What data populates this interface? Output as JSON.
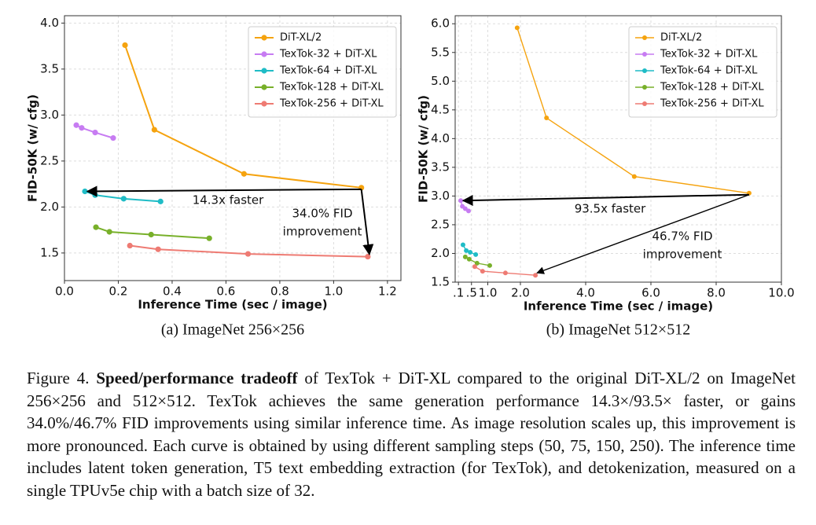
{
  "chart_data": [
    {
      "type": "line",
      "subtitle": "(a) ImageNet 256×256",
      "x_label": "Inference Time (sec / image)",
      "y_label": "FID-50K (w/ cfg)",
      "xlim": [
        0,
        1.25
      ],
      "ylim": [
        1.2,
        4.08
      ],
      "xticks": [
        {
          "value": 0,
          "label": "0.0"
        },
        0.2,
        0.4,
        0.6,
        0.8,
        {
          "value": 1,
          "label": "1.0"
        },
        1.2
      ],
      "yticks": [
        1.5,
        {
          "value": 2,
          "label": "2.0"
        },
        2.5,
        {
          "value": 3,
          "label": "3.0"
        },
        3.5,
        {
          "value": 4,
          "label": "4.0"
        }
      ],
      "grid": true,
      "legend": "upper right",
      "series": [
        {
          "name": "DiT-XL/2",
          "color": "#f5a30f",
          "x": [
            0.225,
            0.334,
            0.667,
            1.103
          ],
          "values": [
            3.76,
            2.84,
            2.36,
            2.21
          ]
        },
        {
          "name": "TexTok-32 + DiT-XL",
          "color": "#c77cf2",
          "x": [
            0.044,
            0.064,
            0.114,
            0.181
          ],
          "values": [
            2.89,
            2.86,
            2.81,
            2.75
          ]
        },
        {
          "name": "TexTok-64 + DiT-XL",
          "color": "#1fbcc6",
          "x": [
            0.076,
            0.114,
            0.22,
            0.357
          ],
          "values": [
            2.17,
            2.13,
            2.09,
            2.06
          ]
        },
        {
          "name": "TexTok-128 + DiT-XL",
          "color": "#78b02a",
          "x": [
            0.117,
            0.167,
            0.322,
            0.538
          ],
          "values": [
            1.78,
            1.73,
            1.7,
            1.66
          ]
        },
        {
          "name": "TexTok-256 + DiT-XL",
          "color": "#ee7b73",
          "x": [
            0.243,
            0.348,
            0.682,
            1.127
          ],
          "values": [
            1.58,
            1.54,
            1.49,
            1.46
          ]
        }
      ],
      "annotations": [
        {
          "text": [
            "14.3x faster"
          ]
        },
        {
          "text": [
            "34.0% FID",
            "improvement"
          ]
        }
      ]
    },
    {
      "type": "line",
      "subtitle": "(b) ImageNet 512×512",
      "x_label": "Inference Time (sec / image)",
      "y_label": "FID-50K (w/ cfg)",
      "xlim": [
        0,
        10
      ],
      "ylim": [
        1.5,
        6.14
      ],
      "xticks": [
        {
          "value": 0.1,
          "label": ".1"
        },
        {
          "value": 0.5,
          "label": ".5"
        },
        {
          "value": 1,
          "label": "1.0"
        },
        {
          "value": 2,
          "label": "2.0"
        },
        {
          "value": 4,
          "label": "4.0"
        },
        {
          "value": 6,
          "label": "6.0"
        },
        {
          "value": 8,
          "label": "8.0"
        },
        {
          "value": 10,
          "label": "10.0"
        }
      ],
      "yticks": [
        1.5,
        {
          "value": 2,
          "label": "2.0"
        },
        2.5,
        {
          "value": 3,
          "label": "3.0"
        },
        3.5,
        {
          "value": 4,
          "label": "4.0"
        },
        4.5,
        {
          "value": 5,
          "label": "5.0"
        },
        5.5,
        {
          "value": 6,
          "label": "6.0"
        }
      ],
      "grid": true,
      "legend": "upper right",
      "series": [
        {
          "name": "DiT-XL/2",
          "color": "#f5a30f",
          "x": [
            1.9,
            2.8,
            5.49,
            9.01
          ],
          "values": [
            5.93,
            4.36,
            3.34,
            3.05
          ]
        },
        {
          "name": "TexTok-32 + DiT-XL",
          "color": "#c77cf2",
          "x": [
            0.17,
            0.22,
            0.31,
            0.41
          ],
          "values": [
            2.92,
            2.82,
            2.78,
            2.74
          ]
        },
        {
          "name": "TexTok-64 + DiT-XL",
          "color": "#1fbcc6",
          "x": [
            0.24,
            0.34,
            0.46,
            0.63
          ],
          "values": [
            2.15,
            2.05,
            2.02,
            1.98
          ]
        },
        {
          "name": "TexTok-128 + DiT-XL",
          "color": "#78b02a",
          "x": [
            0.31,
            0.43,
            0.67,
            1.06
          ],
          "values": [
            1.94,
            1.9,
            1.83,
            1.79
          ]
        },
        {
          "name": "TexTok-256 + DiT-XL",
          "color": "#ee7b73",
          "x": [
            0.6,
            0.84,
            1.54,
            2.46
          ],
          "values": [
            1.77,
            1.69,
            1.66,
            1.62
          ]
        }
      ],
      "annotations": [
        {
          "text": [
            "93.5x faster"
          ]
        },
        {
          "text": [
            "46.7% FID",
            "improvement"
          ]
        }
      ]
    }
  ],
  "caption": {
    "label": "Figure 4.",
    "bold": "Speed/performance tradeoff",
    "text": "of TexTok + DiT-XL compared to the original DiT-XL/2 on ImageNet 256×256 and 512×512. TexTok achieves the same generation performance 14.3×/93.5× faster, or gains 34.0%/46.7% FID improvements using similar inference time. As image resolution scales up, this improvement is more pronounced. Each curve is obtained by using different sampling steps (50, 75, 150, 250). The inference time includes latent token generation, T5 text embedding extraction (for TexTok), and detokenization, measured on a single TPUv5e chip with a batch size of 32."
  }
}
